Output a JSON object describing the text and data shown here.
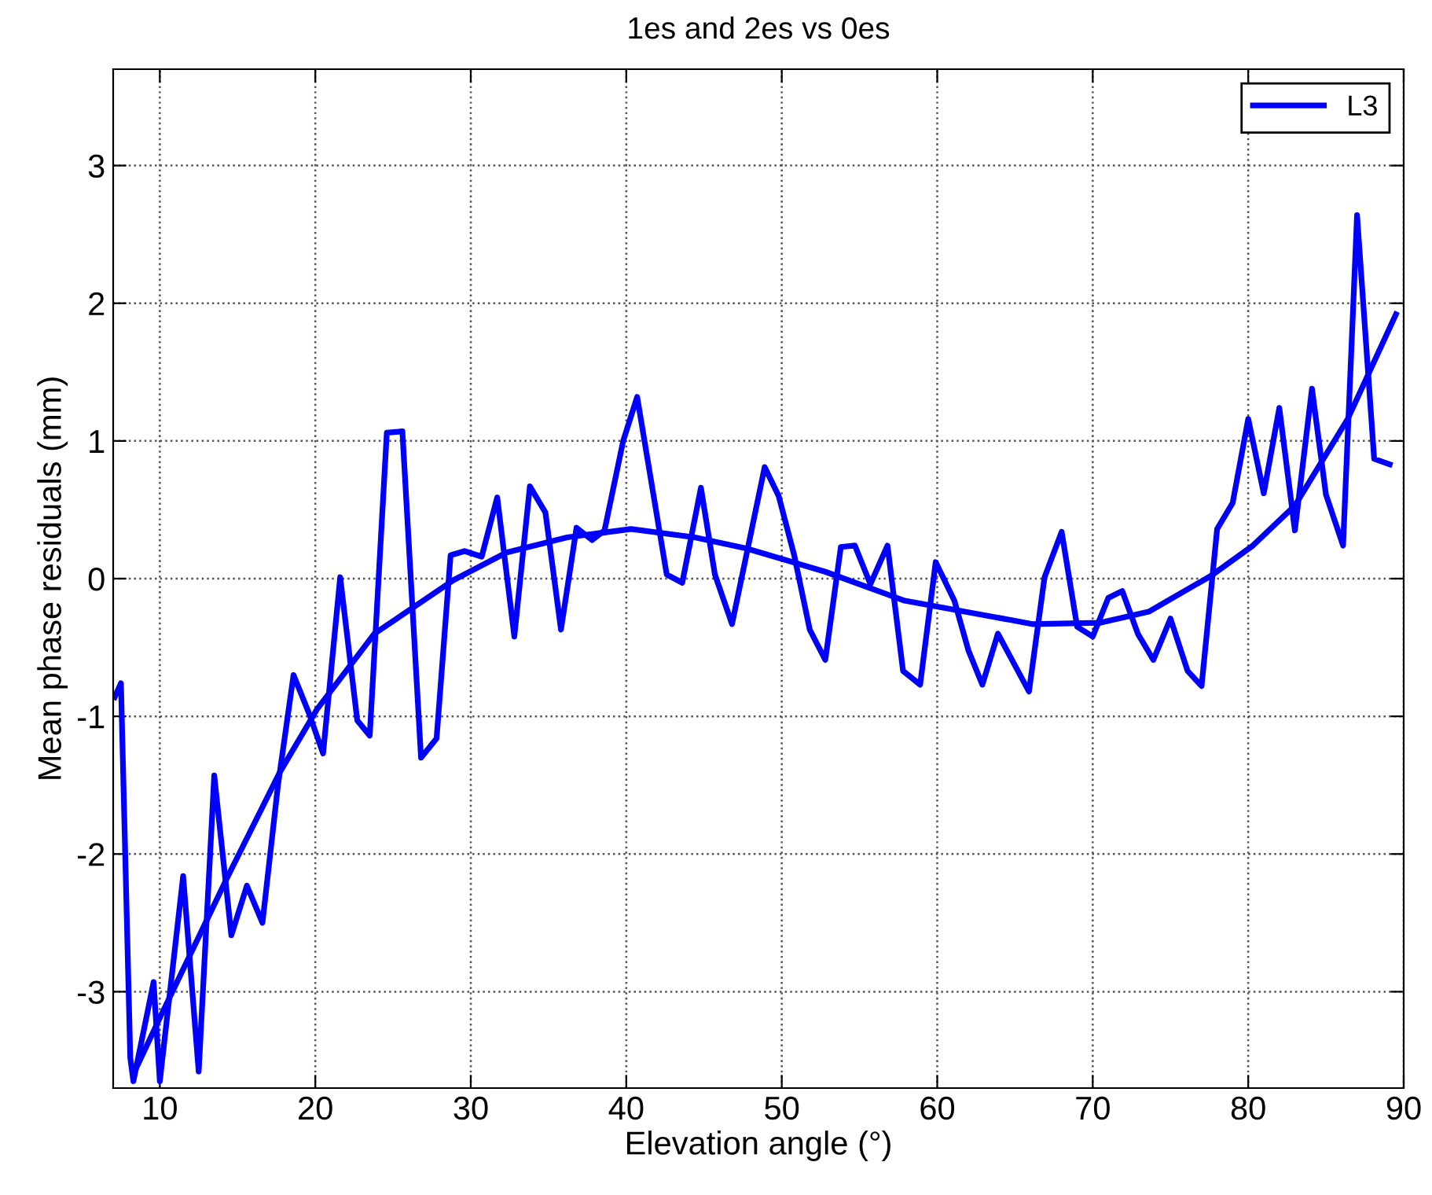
{
  "chart_data": {
    "type": "line",
    "title": "1es and 2es vs 0es",
    "xlabel": "Elevation angle (°)",
    "ylabel": "Mean phase residuals (mm)",
    "xlim": [
      7,
      90
    ],
    "ylim": [
      -3.7,
      3.7
    ],
    "xticks": [
      10,
      20,
      30,
      40,
      50,
      60,
      70,
      80,
      90
    ],
    "yticks": [
      -3,
      -2,
      -1,
      0,
      1,
      2,
      3
    ],
    "grid": true,
    "legend": "top right",
    "line_style": "solid",
    "marker": "none",
    "series": [
      {
        "name": "L3",
        "color": "#0000ff",
        "x": [
          7.1,
          7.5,
          8.1,
          8.3,
          9.6,
          10.0,
          11.5,
          12.5,
          13.5,
          14.6,
          15.6,
          16.6,
          17.6,
          18.6,
          19.6,
          20.5,
          21.6,
          22.7,
          23.5,
          24.6,
          25.6,
          26.8,
          27.8,
          28.7,
          29.6,
          30.7,
          31.7,
          32.8,
          33.8,
          34.8,
          35.8,
          36.8,
          37.8,
          38.6,
          39.8,
          40.7,
          42.6,
          43.6,
          44.8,
          45.7,
          46.8,
          48.9,
          49.8,
          50.8,
          51.8,
          52.8,
          53.8,
          54.7,
          55.7,
          56.8,
          57.8,
          58.9,
          59.9,
          61.1,
          62.0,
          62.9,
          63.9,
          65.9,
          66.9,
          68.0,
          69.0,
          70.0,
          71.0,
          71.9,
          72.9,
          73.9,
          75.0,
          76.1,
          77.0,
          78.0,
          79.0,
          80.0,
          81.0,
          82.0,
          83.0,
          84.1,
          85.0,
          86.1,
          87.0,
          88.1,
          89.1
        ],
        "values": [
          -0.86,
          -0.76,
          -3.48,
          -3.65,
          -2.93,
          -3.65,
          -2.16,
          -3.58,
          -1.43,
          -2.59,
          -2.23,
          -2.5,
          -1.5,
          -0.7,
          -0.98,
          -1.27,
          0.01,
          -1.03,
          -1.14,
          1.06,
          1.07,
          -1.3,
          -1.16,
          0.17,
          0.2,
          0.16,
          0.59,
          -0.42,
          0.67,
          0.48,
          -0.37,
          0.37,
          0.28,
          0.35,
          1.0,
          1.32,
          0.03,
          -0.03,
          0.66,
          0.03,
          -0.33,
          0.81,
          0.6,
          0.17,
          -0.37,
          -0.59,
          0.23,
          0.24,
          -0.04,
          0.24,
          -0.67,
          -0.77,
          0.12,
          -0.16,
          -0.52,
          -0.77,
          -0.4,
          -0.82,
          0.01,
          0.34,
          -0.35,
          -0.42,
          -0.14,
          -0.09,
          -0.4,
          -0.59,
          -0.29,
          -0.67,
          -0.78,
          0.36,
          0.55,
          1.16,
          0.62,
          1.24,
          0.35,
          1.38,
          0.61,
          0.24,
          2.64,
          0.87,
          0.83
        ]
      },
      {
        "type": "line",
        "color": "#0000ff",
        "x": [
          8.5,
          10.0,
          14.3,
          17.7,
          20.1,
          23.8,
          28.9,
          32.3,
          36.2,
          40.3,
          44.4,
          47.7,
          52.8,
          57.9,
          64.7,
          66.1,
          70.5,
          73.6,
          77.6,
          80.3,
          83.0,
          86.4,
          89.5
        ],
        "values": [
          -3.55,
          -3.19,
          -2.18,
          -1.41,
          -0.95,
          -0.4,
          -0.01,
          0.19,
          0.3,
          0.36,
          0.3,
          0.22,
          0.05,
          -0.16,
          -0.3,
          -0.33,
          -0.32,
          -0.24,
          0.02,
          0.24,
          0.53,
          1.16,
          1.92
        ]
      }
    ]
  }
}
